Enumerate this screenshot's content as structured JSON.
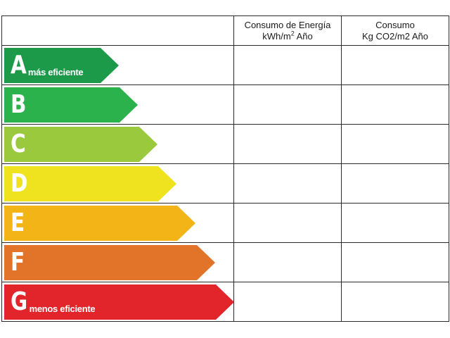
{
  "header": {
    "energy_line1": "Consumo de Energía",
    "energy_line2_prefix": "kWh/m",
    "energy_line2_sup": "2",
    "energy_line2_suffix": " Año",
    "co2_line1": "Consumo",
    "co2_line2": "Kg CO2/m2 Año"
  },
  "bands": [
    {
      "letter": "A",
      "note": "más eficiente",
      "color": "#1c9a4a"
    },
    {
      "letter": "B",
      "note": "",
      "color": "#2bb24c"
    },
    {
      "letter": "C",
      "note": "",
      "color": "#9ac93d"
    },
    {
      "letter": "D",
      "note": "",
      "color": "#eee31e"
    },
    {
      "letter": "E",
      "note": "",
      "color": "#f2b417"
    },
    {
      "letter": "F",
      "note": "",
      "color": "#e2742a"
    },
    {
      "letter": "G",
      "note": "menos eficiente",
      "color": "#e2242b"
    }
  ]
}
